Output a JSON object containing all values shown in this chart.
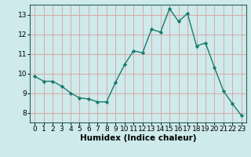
{
  "x": [
    0,
    1,
    2,
    3,
    4,
    5,
    6,
    7,
    8,
    9,
    10,
    11,
    12,
    13,
    14,
    15,
    16,
    17,
    18,
    19,
    20,
    21,
    22,
    23
  ],
  "y": [
    9.85,
    9.6,
    9.6,
    9.35,
    9.0,
    8.75,
    8.7,
    8.55,
    8.55,
    9.55,
    10.45,
    11.15,
    11.05,
    12.25,
    12.1,
    13.3,
    12.65,
    13.05,
    11.4,
    11.55,
    10.3,
    9.1,
    8.45,
    7.85
  ],
  "line_color": "#1a7a6e",
  "marker": "D",
  "marker_size": 2.2,
  "bg_color": "#ceeaea",
  "grid_color": "#d9a8a8",
  "xlabel": "Humidex (Indice chaleur)",
  "ylim": [
    7.5,
    13.5
  ],
  "xlim": [
    -0.5,
    23.5
  ],
  "yticks": [
    8,
    9,
    10,
    11,
    12,
    13
  ],
  "xticks": [
    0,
    1,
    2,
    3,
    4,
    5,
    6,
    7,
    8,
    9,
    10,
    11,
    12,
    13,
    14,
    15,
    16,
    17,
    18,
    19,
    20,
    21,
    22,
    23
  ],
  "xlabel_fontsize": 7.5,
  "tick_fontsize": 6.5,
  "linewidth": 1.0
}
